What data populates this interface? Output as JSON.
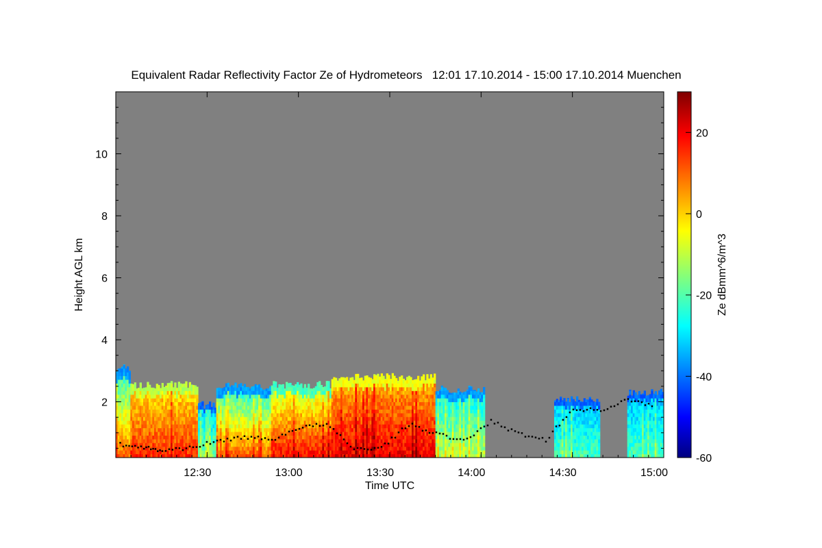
{
  "chart_data": {
    "type": "heatmap",
    "title": "Equivalent Radar Reflectivity Factor Ze of Hydrometeors   12:01 17.10.2014 - 15:00 17.10.2014 Muenchen",
    "xlabel": "Time UTC",
    "ylabel": "Height AGL km",
    "colorbar_label": "Ze dBmm^6/m^3",
    "x_range_hours": [
      12.0,
      15.0
    ],
    "y_range_km": [
      0.2,
      12.0
    ],
    "color_range_dbz": [
      -60,
      30
    ],
    "x_ticks": [
      {
        "value": 12.5,
        "label": "12:30"
      },
      {
        "value": 13.0,
        "label": "13:00"
      },
      {
        "value": 13.5,
        "label": "13:30"
      },
      {
        "value": 14.0,
        "label": "14:00"
      },
      {
        "value": 14.5,
        "label": "14:30"
      },
      {
        "value": 15.0,
        "label": "15:00"
      }
    ],
    "y_ticks": [
      {
        "value": 2,
        "label": "2"
      },
      {
        "value": 4,
        "label": "4"
      },
      {
        "value": 6,
        "label": "6"
      },
      {
        "value": 8,
        "label": "8"
      },
      {
        "value": 10,
        "label": "10"
      }
    ],
    "colorbar_ticks": [
      {
        "value": 20,
        "label": "20"
      },
      {
        "value": 0,
        "label": "0"
      },
      {
        "value": -20,
        "label": "-20"
      },
      {
        "value": -40,
        "label": "-40"
      },
      {
        "value": -60,
        "label": "-60"
      }
    ],
    "background_color": "#808080",
    "echo_regions": [
      {
        "t0": 12.0,
        "t1": 12.08,
        "top_km": 3.1,
        "dbz_low": -30,
        "dbz_high": 10
      },
      {
        "t0": 12.08,
        "t1": 12.45,
        "top_km": 2.55,
        "dbz_low": -5,
        "dbz_high": 15
      },
      {
        "t0": 12.45,
        "t1": 12.55,
        "top_km": 1.9,
        "dbz_low": -35,
        "dbz_high": -15
      },
      {
        "t0": 12.55,
        "t1": 12.85,
        "top_km": 2.5,
        "dbz_low": -30,
        "dbz_high": 10
      },
      {
        "t0": 12.85,
        "t1": 13.18,
        "top_km": 2.55,
        "dbz_low": -15,
        "dbz_high": 18
      },
      {
        "t0": 13.18,
        "t1": 13.75,
        "top_km": 2.8,
        "dbz_low": 0,
        "dbz_high": 20
      },
      {
        "t0": 13.75,
        "t1": 14.02,
        "top_km": 2.4,
        "dbz_low": -30,
        "dbz_high": -10
      },
      {
        "t0": 14.4,
        "t1": 14.65,
        "top_km": 2.1,
        "dbz_low": -35,
        "dbz_high": -20
      },
      {
        "t0": 14.8,
        "t1": 15.0,
        "top_km": 2.3,
        "dbz_low": -35,
        "dbz_high": -20
      }
    ],
    "cloud_base_km": [
      {
        "t": 12.02,
        "h": 0.65
      },
      {
        "t": 12.15,
        "h": 0.55
      },
      {
        "t": 12.25,
        "h": 0.45
      },
      {
        "t": 12.4,
        "h": 0.55
      },
      {
        "t": 12.55,
        "h": 0.75
      },
      {
        "t": 12.7,
        "h": 0.9
      },
      {
        "t": 12.85,
        "h": 0.8
      },
      {
        "t": 13.0,
        "h": 1.2
      },
      {
        "t": 13.15,
        "h": 1.3
      },
      {
        "t": 13.3,
        "h": 0.5
      },
      {
        "t": 13.45,
        "h": 0.55
      },
      {
        "t": 13.6,
        "h": 1.3
      },
      {
        "t": 13.75,
        "h": 1.0
      },
      {
        "t": 13.9,
        "h": 0.75
      },
      {
        "t": 14.05,
        "h": 1.4
      },
      {
        "t": 14.2,
        "h": 1.0
      },
      {
        "t": 14.35,
        "h": 0.8
      },
      {
        "t": 14.5,
        "h": 1.8
      },
      {
        "t": 14.65,
        "h": 1.75
      },
      {
        "t": 14.8,
        "h": 2.1
      },
      {
        "t": 14.95,
        "h": 1.85
      }
    ]
  }
}
